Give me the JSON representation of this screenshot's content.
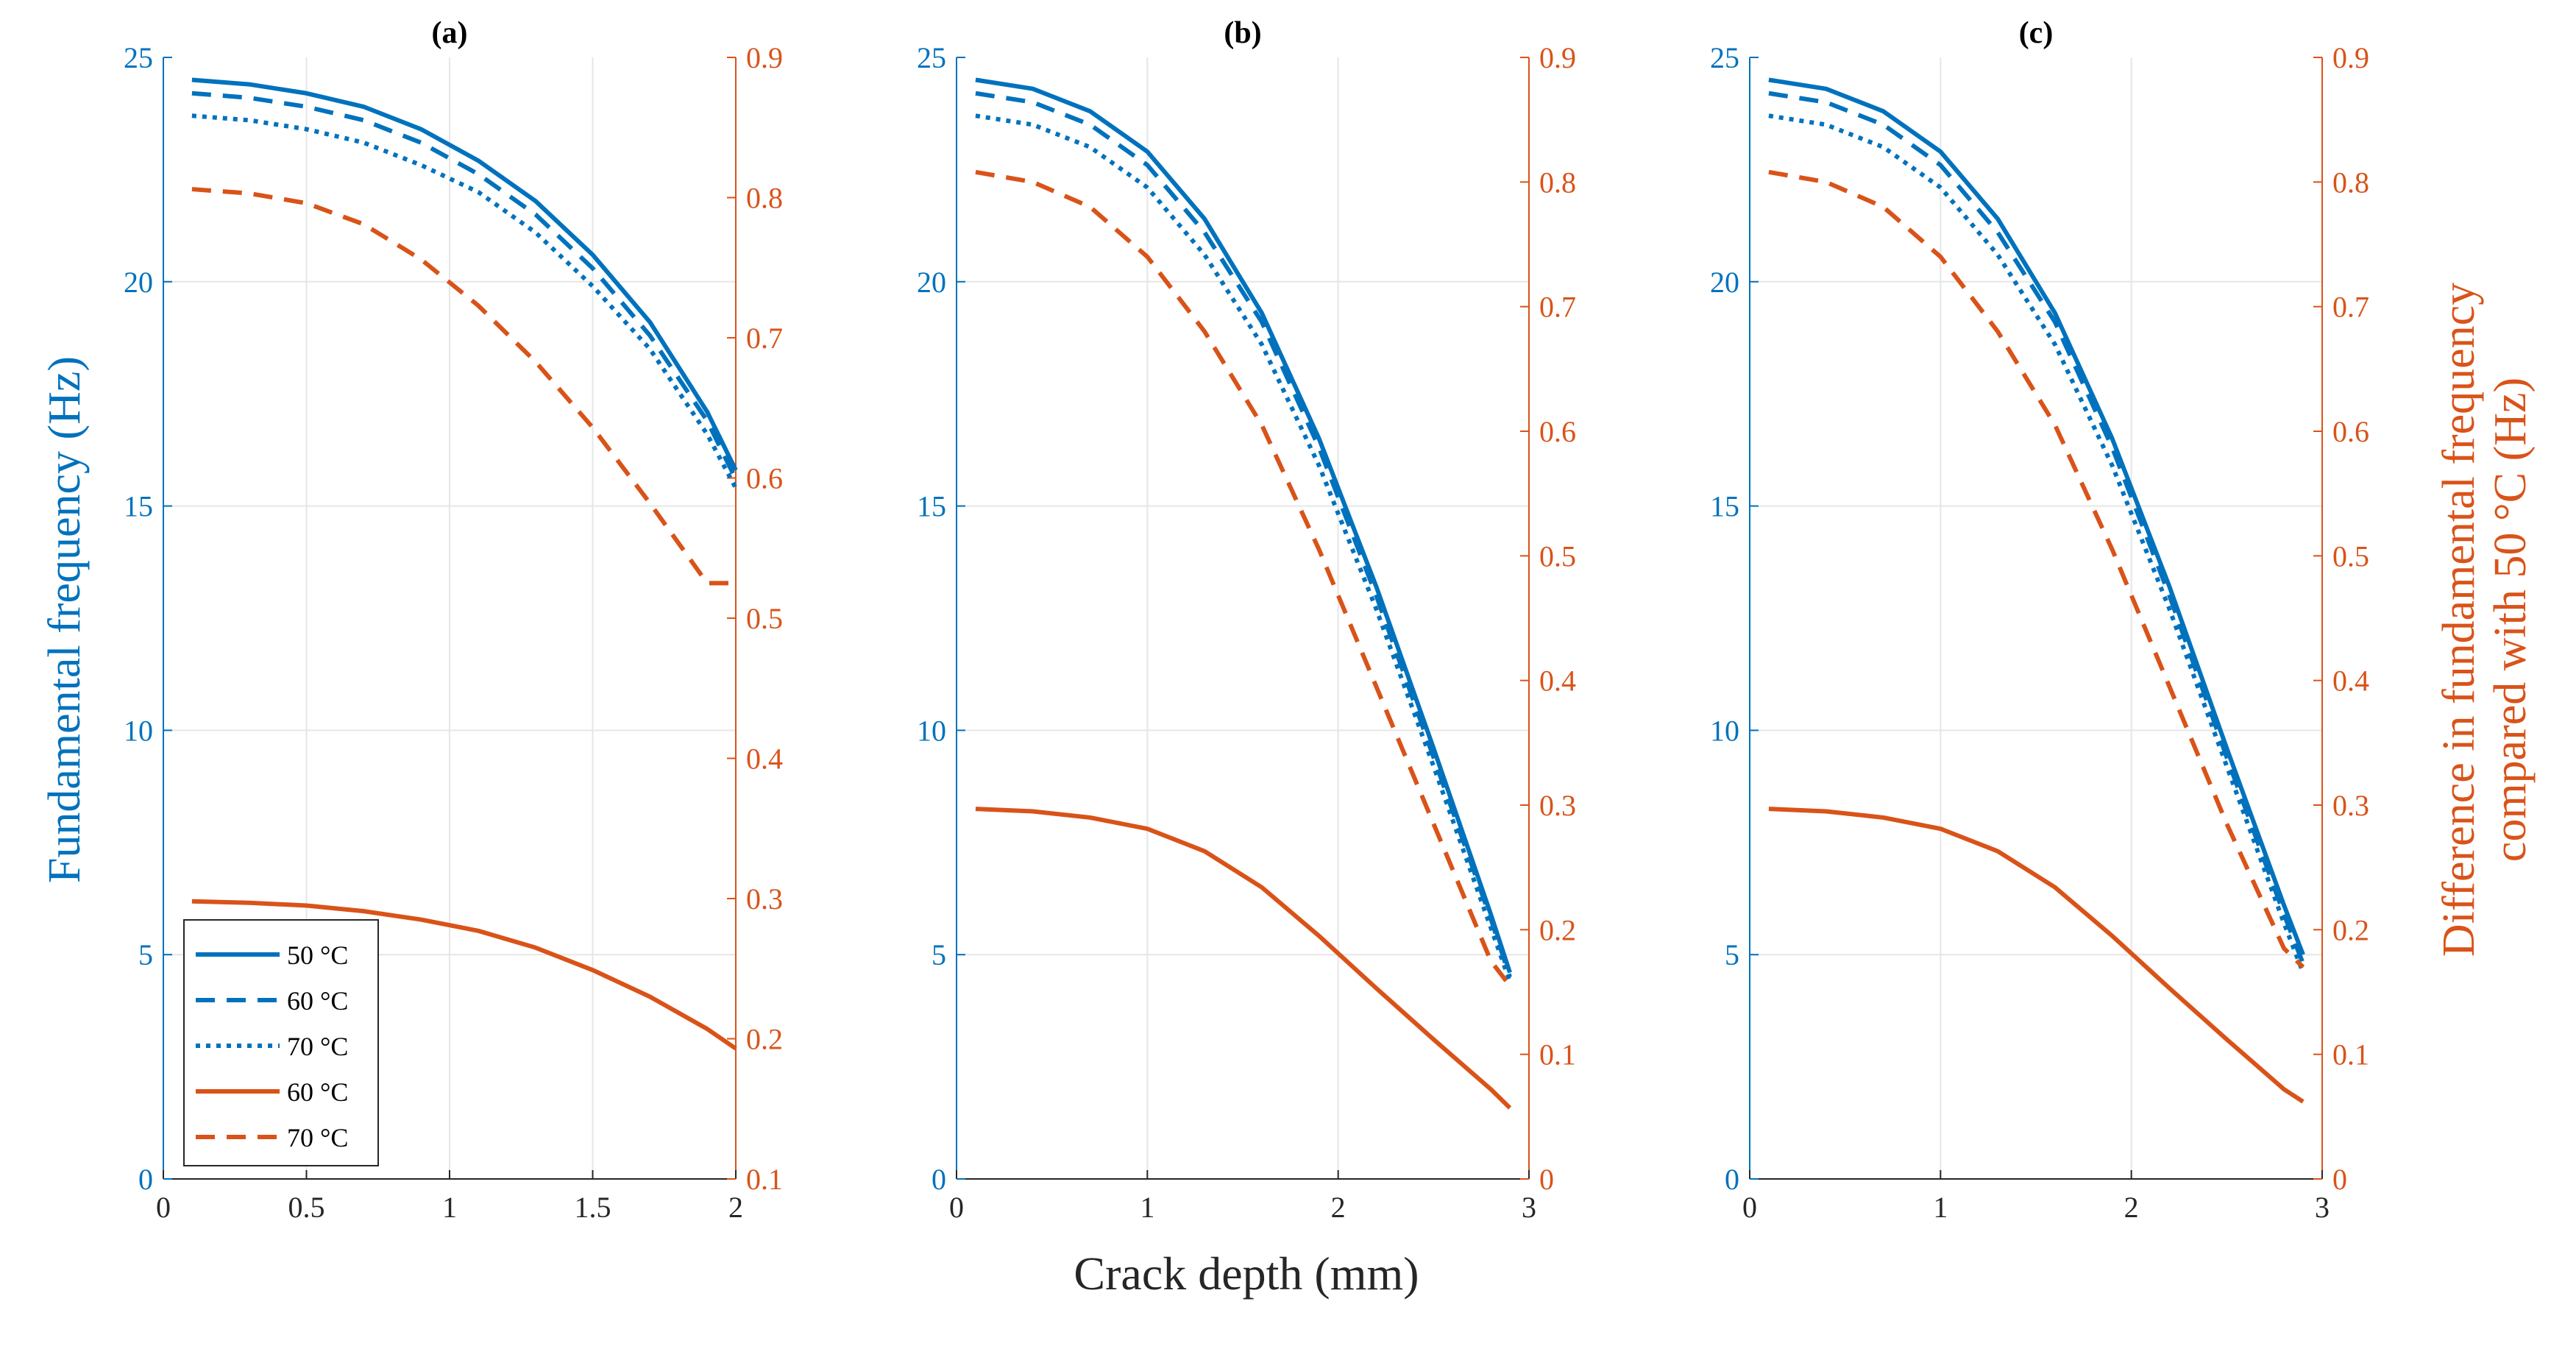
{
  "colors": {
    "left": "#0072BD",
    "right": "#D95319",
    "grid": "#E6E6E6",
    "axis": "#262626"
  },
  "chart_data": [
    {
      "type": "line",
      "title": "(a)",
      "xlim": [
        0,
        2
      ],
      "ylim": [
        0,
        25
      ],
      "y2lim": [
        0.1,
        0.9
      ],
      "xticks": [
        0,
        0.5,
        1,
        1.5,
        2
      ],
      "yticks": [
        0,
        5,
        10,
        15,
        20,
        25
      ],
      "y2ticks": [
        0.1,
        0.2,
        0.3,
        0.4,
        0.5,
        0.6,
        0.7,
        0.8,
        0.9
      ],
      "series": [
        {
          "name": "50 °C",
          "axis": "left",
          "style": "solid",
          "x": [
            0.1,
            0.3,
            0.5,
            0.7,
            0.9,
            1.1,
            1.3,
            1.5,
            1.7,
            1.9,
            2.0
          ],
          "y": [
            24.5,
            24.4,
            24.2,
            23.9,
            23.4,
            22.7,
            21.8,
            20.6,
            19.1,
            17.1,
            15.8
          ]
        },
        {
          "name": "60 °C",
          "axis": "left",
          "style": "dashed",
          "x": [
            0.1,
            0.3,
            0.5,
            0.7,
            0.9,
            1.1,
            1.3,
            1.5,
            1.7,
            1.9,
            2.0
          ],
          "y": [
            24.2,
            24.1,
            23.9,
            23.6,
            23.1,
            22.4,
            21.5,
            20.3,
            18.8,
            16.9,
            15.6
          ]
        },
        {
          "name": "70 °C",
          "axis": "left",
          "style": "dotted",
          "x": [
            0.1,
            0.3,
            0.5,
            0.7,
            0.9,
            1.1,
            1.3,
            1.5,
            1.7,
            1.9,
            2.0
          ],
          "y": [
            23.7,
            23.6,
            23.4,
            23.1,
            22.6,
            22.0,
            21.1,
            19.9,
            18.5,
            16.6,
            15.4
          ]
        },
        {
          "name": "60 °C",
          "axis": "right",
          "style": "solid",
          "x": [
            0.1,
            0.3,
            0.5,
            0.7,
            0.9,
            1.1,
            1.3,
            1.5,
            1.7,
            1.9,
            2.0
          ],
          "y": [
            0.298,
            0.297,
            0.295,
            0.291,
            0.285,
            0.277,
            0.265,
            0.249,
            0.23,
            0.207,
            0.193
          ]
        },
        {
          "name": "70 °C",
          "axis": "right",
          "style": "dashed",
          "x": [
            0.1,
            0.3,
            0.5,
            0.7,
            0.9,
            1.1,
            1.3,
            1.5,
            1.7,
            1.9,
            2.0
          ],
          "y": [
            0.806,
            0.803,
            0.796,
            0.781,
            0.756,
            0.723,
            0.683,
            0.636,
            0.582,
            0.525,
            0.525
          ]
        }
      ]
    },
    {
      "type": "line",
      "title": "(b)",
      "xlim": [
        0,
        3
      ],
      "ylim": [
        0,
        25
      ],
      "y2lim": [
        0,
        0.9
      ],
      "xticks": [
        0,
        1,
        2,
        3
      ],
      "yticks": [
        0,
        5,
        10,
        15,
        20,
        25
      ],
      "y2ticks": [
        0,
        0.1,
        0.2,
        0.3,
        0.4,
        0.5,
        0.6,
        0.7,
        0.8,
        0.9
      ],
      "series": [
        {
          "name": "50 °C",
          "axis": "left",
          "style": "solid",
          "x": [
            0.1,
            0.4,
            0.7,
            1.0,
            1.3,
            1.6,
            1.9,
            2.2,
            2.5,
            2.8,
            2.9
          ],
          "y": [
            24.5,
            24.3,
            23.8,
            22.9,
            21.4,
            19.3,
            16.5,
            13.2,
            9.6,
            5.9,
            4.6
          ]
        },
        {
          "name": "60 °C",
          "axis": "left",
          "style": "dashed",
          "x": [
            0.1,
            0.4,
            0.7,
            1.0,
            1.3,
            1.6,
            1.9,
            2.2,
            2.5,
            2.8,
            2.9
          ],
          "y": [
            24.2,
            24.0,
            23.5,
            22.6,
            21.1,
            19.1,
            16.3,
            13.0,
            9.4,
            5.8,
            4.5
          ]
        },
        {
          "name": "70 °C",
          "axis": "left",
          "style": "dotted",
          "x": [
            0.1,
            0.4,
            0.7,
            1.0,
            1.3,
            1.6,
            1.9,
            2.2,
            2.5,
            2.8,
            2.9
          ],
          "y": [
            23.7,
            23.5,
            23.0,
            22.1,
            20.6,
            18.6,
            15.9,
            12.7,
            9.2,
            5.6,
            4.4
          ]
        },
        {
          "name": "60 °C",
          "axis": "right",
          "style": "solid",
          "x": [
            0.1,
            0.4,
            0.7,
            1.0,
            1.3,
            1.6,
            1.9,
            2.2,
            2.5,
            2.8,
            2.9
          ],
          "y": [
            0.297,
            0.295,
            0.29,
            0.281,
            0.263,
            0.234,
            0.195,
            0.153,
            0.112,
            0.072,
            0.057
          ]
        },
        {
          "name": "70 °C",
          "axis": "right",
          "style": "dashed",
          "x": [
            0.1,
            0.4,
            0.7,
            1.0,
            1.3,
            1.6,
            1.9,
            2.2,
            2.5,
            2.8,
            2.9
          ],
          "y": [
            0.808,
            0.8,
            0.78,
            0.74,
            0.68,
            0.605,
            0.505,
            0.395,
            0.285,
            0.175,
            0.155
          ]
        }
      ]
    },
    {
      "type": "line",
      "title": "(c)",
      "xlim": [
        0,
        3
      ],
      "ylim": [
        0,
        25
      ],
      "y2lim": [
        0,
        0.9
      ],
      "xticks": [
        0,
        1,
        2,
        3
      ],
      "yticks": [
        0,
        5,
        10,
        15,
        20,
        25
      ],
      "y2ticks": [
        0,
        0.1,
        0.2,
        0.3,
        0.4,
        0.5,
        0.6,
        0.7,
        0.8,
        0.9
      ],
      "ylabel": "Fundamental frequency (Hz)",
      "y2label_line1": "Difference in fundamental frequency",
      "y2label_line2": "compared with 50 °C (Hz)",
      "series": [
        {
          "name": "50 °C",
          "axis": "left",
          "style": "solid",
          "x": [
            0.1,
            0.4,
            0.7,
            1.0,
            1.3,
            1.6,
            1.9,
            2.2,
            2.5,
            2.8,
            2.9
          ],
          "y": [
            24.5,
            24.3,
            23.8,
            22.9,
            21.4,
            19.3,
            16.5,
            13.2,
            9.6,
            6.1,
            5.0
          ]
        },
        {
          "name": "60 °C",
          "axis": "left",
          "style": "dashed",
          "x": [
            0.1,
            0.4,
            0.7,
            1.0,
            1.3,
            1.6,
            1.9,
            2.2,
            2.5,
            2.8,
            2.9
          ],
          "y": [
            24.2,
            24.0,
            23.5,
            22.6,
            21.1,
            19.1,
            16.3,
            13.0,
            9.4,
            5.9,
            4.8
          ]
        },
        {
          "name": "70 °C",
          "axis": "left",
          "style": "dotted",
          "x": [
            0.1,
            0.4,
            0.7,
            1.0,
            1.3,
            1.6,
            1.9,
            2.2,
            2.5,
            2.8,
            2.9
          ],
          "y": [
            23.7,
            23.5,
            23.0,
            22.1,
            20.6,
            18.6,
            15.9,
            12.7,
            9.2,
            5.7,
            4.6
          ]
        },
        {
          "name": "60 °C",
          "axis": "right",
          "style": "solid",
          "x": [
            0.1,
            0.4,
            0.7,
            1.0,
            1.3,
            1.6,
            1.9,
            2.2,
            2.5,
            2.8,
            2.9
          ],
          "y": [
            0.297,
            0.295,
            0.29,
            0.281,
            0.263,
            0.234,
            0.195,
            0.153,
            0.112,
            0.072,
            0.062
          ]
        },
        {
          "name": "70 °C",
          "axis": "right",
          "style": "dashed",
          "x": [
            0.1,
            0.4,
            0.7,
            1.0,
            1.3,
            1.6,
            1.9,
            2.2,
            2.5,
            2.8,
            2.9
          ],
          "y": [
            0.808,
            0.8,
            0.78,
            0.74,
            0.68,
            0.605,
            0.505,
            0.395,
            0.285,
            0.185,
            0.17
          ]
        }
      ]
    }
  ],
  "ylabel": "Fundamental frequency (Hz)",
  "y2label_line1": "Difference in fundamental frequency",
  "y2label_line2": "compared with 50 °C (Hz)",
  "xlabel": "Crack depth (mm)",
  "legend": {
    "entries": [
      {
        "label": "50 °C",
        "color": "left",
        "style": "solid"
      },
      {
        "label": "60 °C",
        "color": "left",
        "style": "dashed"
      },
      {
        "label": "70 °C",
        "color": "left",
        "style": "dotted"
      },
      {
        "label": "60 °C",
        "color": "right",
        "style": "solid"
      },
      {
        "label": "70 °C",
        "color": "right",
        "style": "dashed"
      }
    ],
    "location": "bottom-left of panel (a)"
  }
}
